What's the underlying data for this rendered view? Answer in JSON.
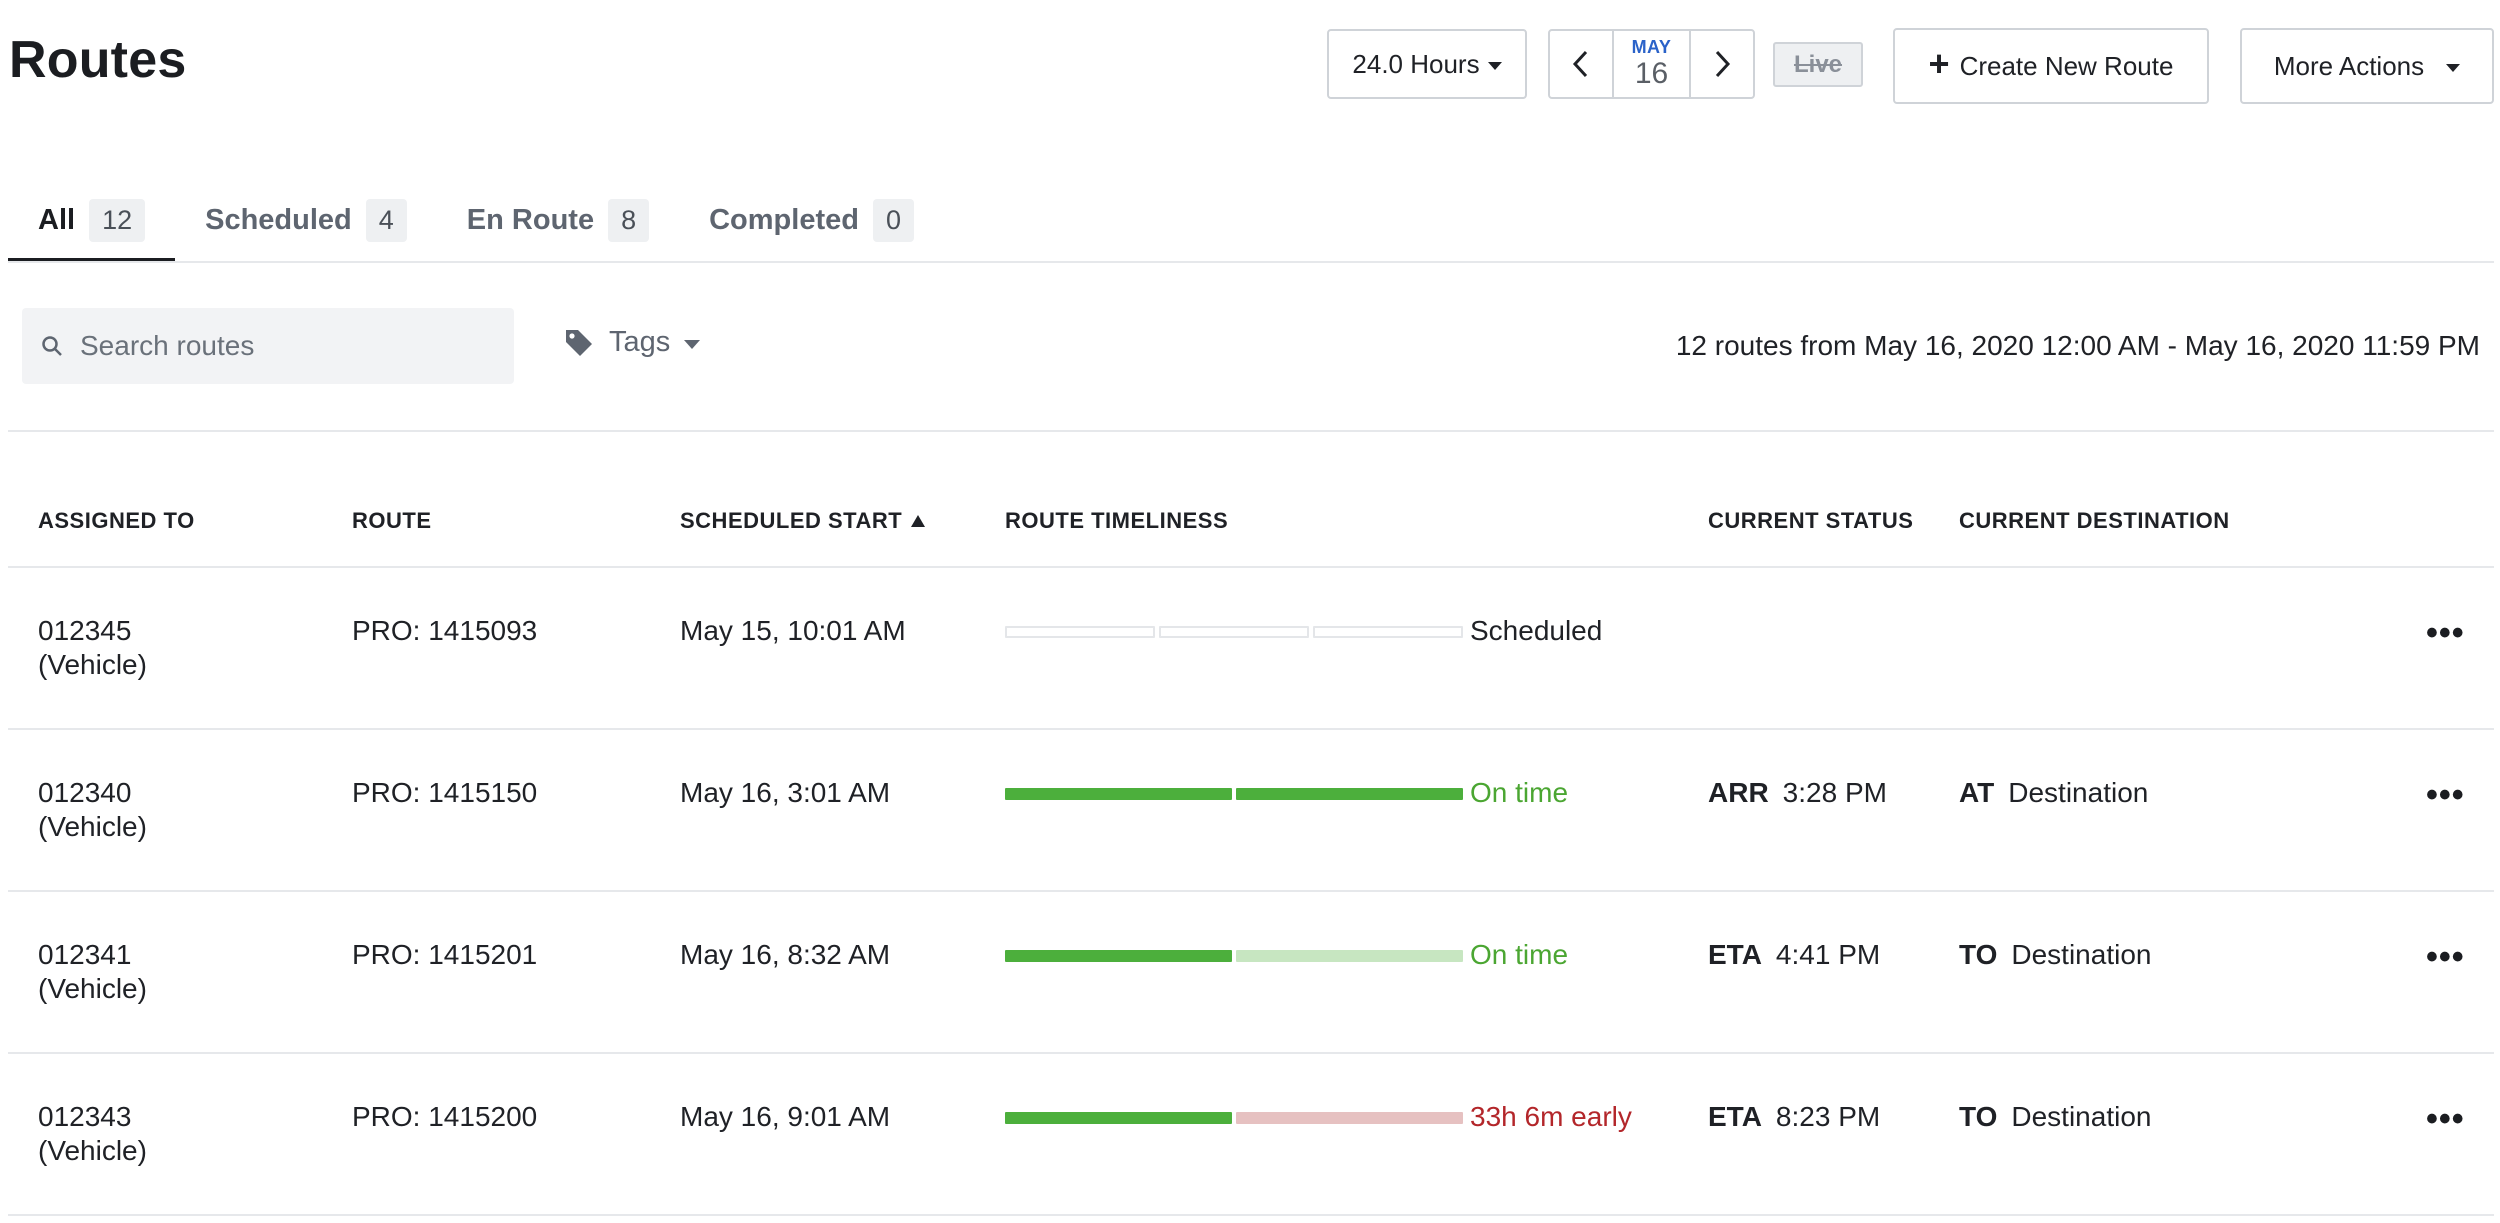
{
  "page": {
    "title": "Routes"
  },
  "header": {
    "hours_label": "24.0 Hours",
    "date_month": "MAY",
    "date_day": "16",
    "live_label": "Live",
    "create_label": "Create New Route",
    "more_actions_label": "More Actions"
  },
  "tabs": [
    {
      "label": "All",
      "count": "12",
      "active": true
    },
    {
      "label": "Scheduled",
      "count": "4",
      "active": false
    },
    {
      "label": "En Route",
      "count": "8",
      "active": false
    },
    {
      "label": "Completed",
      "count": "0",
      "active": false
    }
  ],
  "filters": {
    "search_placeholder": "Search routes",
    "tags_label": "Tags",
    "range_text": "12 routes from May 16, 2020 12:00 AM - May 16, 2020 11:59 PM"
  },
  "table": {
    "columns": {
      "assigned": "ASSIGNED TO",
      "route": "ROUTE",
      "start": "SCHEDULED START",
      "timeliness": "ROUTE TIMELINESS",
      "status": "CURRENT STATUS",
      "destination": "CURRENT DESTINATION"
    },
    "rows": [
      {
        "assigned_id": "012345",
        "assigned_type": "(Vehicle)",
        "route": "PRO: 1415093",
        "start": "May 15, 10:01 AM",
        "timeliness": "Scheduled",
        "timeliness_color": "#1f2126",
        "segments": [
          "empty",
          "empty",
          "empty"
        ],
        "status_tag": "",
        "status_time": "",
        "dest_tag": "",
        "dest_name": ""
      },
      {
        "assigned_id": "012340",
        "assigned_type": "(Vehicle)",
        "route": "PRO: 1415150",
        "start": "May 16, 3:01 AM",
        "timeliness": "On time",
        "timeliness_color": "#4ba632",
        "segments": [
          "green",
          "green"
        ],
        "status_tag": "ARR",
        "status_time": "3:28 PM",
        "dest_tag": "AT",
        "dest_name": "Destination"
      },
      {
        "assigned_id": "012341",
        "assigned_type": "(Vehicle)",
        "route": "PRO: 1415201",
        "start": "May 16, 8:32 AM",
        "timeliness": "On time",
        "timeliness_color": "#4ba632",
        "segments": [
          "green",
          "lightgreen"
        ],
        "status_tag": "ETA",
        "status_time": "4:41 PM",
        "dest_tag": "TO",
        "dest_name": "Destination"
      },
      {
        "assigned_id": "012343",
        "assigned_type": "(Vehicle)",
        "route": "PRO: 1415200",
        "start": "May 16, 9:01 AM",
        "timeliness": "33h 6m early",
        "timeliness_color": "#b3262a",
        "segments": [
          "green",
          "pink"
        ],
        "status_tag": "ETA",
        "status_time": "8:23 PM",
        "dest_tag": "TO",
        "dest_name": "Destination"
      }
    ]
  },
  "colors": {
    "green": "#4caf3c",
    "lightgreen": "#c7e6c1",
    "pink": "#e6c1c1",
    "empty": "#ffffff"
  },
  "icons": {
    "search": "search-icon",
    "tag": "tag-icon",
    "more": "more-dots-icon"
  }
}
